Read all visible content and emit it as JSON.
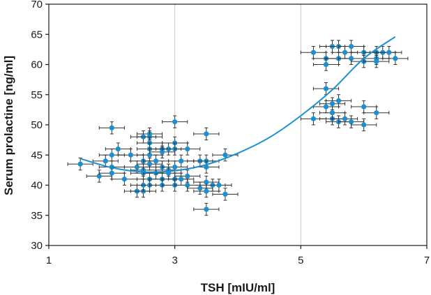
{
  "chart_data": {
    "type": "scatter",
    "title": "",
    "xlabel": "TSH [mIU/ml]",
    "ylabel": "Serum prolactine [ng/ml]",
    "xlim": [
      1,
      7
    ],
    "ylim": [
      30,
      70
    ],
    "x_ticks": [
      "1",
      "3",
      "5",
      "7"
    ],
    "y_ticks": [
      "30",
      "35",
      "40",
      "45",
      "50",
      "55",
      "60",
      "65",
      "70"
    ],
    "grid": "vertical",
    "error_bars": true,
    "colors": {
      "points": "#1b8fd0",
      "trend": "#1b8fd0",
      "error_bars": "#333333",
      "grid": "#c8c8c8"
    },
    "series": [
      {
        "values": [
          [
            1.5,
            43.5
          ],
          [
            1.8,
            41.5
          ],
          [
            1.9,
            44.0
          ],
          [
            2.0,
            49.5
          ],
          [
            2.0,
            45.0
          ],
          [
            2.0,
            43.0
          ],
          [
            2.0,
            42.0
          ],
          [
            2.1,
            46.0
          ],
          [
            2.2,
            41.0
          ],
          [
            2.3,
            45.0
          ],
          [
            2.4,
            39.0
          ],
          [
            2.4,
            43.0
          ],
          [
            2.5,
            48.0
          ],
          [
            2.5,
            44.0
          ],
          [
            2.5,
            42.5
          ],
          [
            2.5,
            39.0
          ],
          [
            2.5,
            40.0
          ],
          [
            2.5,
            42.0
          ],
          [
            2.6,
            48.5
          ],
          [
            2.6,
            48.0
          ],
          [
            2.6,
            47.0
          ],
          [
            2.6,
            46.0
          ],
          [
            2.6,
            45.0
          ],
          [
            2.6,
            43.5
          ],
          [
            2.6,
            41.0
          ],
          [
            2.6,
            40.0
          ],
          [
            2.7,
            44.0
          ],
          [
            2.7,
            42.0
          ],
          [
            2.8,
            46.0
          ],
          [
            2.8,
            45.5
          ],
          [
            2.8,
            43.0
          ],
          [
            2.8,
            41.0
          ],
          [
            2.8,
            40.0
          ],
          [
            2.9,
            46.0
          ],
          [
            2.9,
            42.5
          ],
          [
            2.9,
            42.0
          ],
          [
            3.0,
            50.5
          ],
          [
            3.0,
            47.0
          ],
          [
            3.0,
            46.0
          ],
          [
            3.0,
            43.0
          ],
          [
            3.0,
            41.0
          ],
          [
            3.0,
            40.0
          ],
          [
            3.1,
            44.0
          ],
          [
            3.1,
            41.0
          ],
          [
            3.2,
            46.0
          ],
          [
            3.2,
            41.5
          ],
          [
            3.2,
            40.0
          ],
          [
            3.4,
            44.0
          ],
          [
            3.4,
            39.5
          ],
          [
            3.5,
            48.5
          ],
          [
            3.5,
            44.0
          ],
          [
            3.5,
            43.0
          ],
          [
            3.5,
            40.5
          ],
          [
            3.5,
            39.0
          ],
          [
            3.5,
            36.0
          ],
          [
            3.6,
            40.0
          ],
          [
            3.7,
            40.0
          ],
          [
            3.8,
            45.0
          ],
          [
            3.8,
            38.5
          ],
          [
            5.2,
            62.0
          ],
          [
            5.2,
            51.0
          ],
          [
            5.4,
            61.0
          ],
          [
            5.4,
            60.0
          ],
          [
            5.4,
            56.0
          ],
          [
            5.4,
            53.0
          ],
          [
            5.5,
            63.0
          ],
          [
            5.5,
            53.5
          ],
          [
            5.5,
            51.0
          ],
          [
            5.5,
            52.0
          ],
          [
            5.6,
            63.0
          ],
          [
            5.6,
            61.0
          ],
          [
            5.6,
            54.0
          ],
          [
            5.6,
            50.5
          ],
          [
            5.7,
            62.0
          ],
          [
            5.7,
            51.0
          ],
          [
            5.8,
            63.0
          ],
          [
            5.8,
            61.0
          ],
          [
            5.8,
            50.5
          ],
          [
            6.0,
            62.0
          ],
          [
            6.0,
            60.5
          ],
          [
            6.0,
            53.0
          ],
          [
            6.0,
            50.0
          ],
          [
            6.2,
            62.0
          ],
          [
            6.2,
            61.0
          ],
          [
            6.2,
            60.5
          ],
          [
            6.2,
            52.0
          ],
          [
            6.3,
            62.0
          ],
          [
            6.4,
            62.0
          ],
          [
            6.5,
            61.0
          ]
        ]
      }
    ],
    "trend_line": {
      "x": [
        1.5,
        2.0,
        2.5,
        3.0,
        3.5,
        4.0,
        4.5,
        5.0,
        5.5,
        6.0,
        6.5
      ],
      "y": [
        44.4,
        42.9,
        42.2,
        42.4,
        43.4,
        45.3,
        47.9,
        51.5,
        55.8,
        61.0,
        64.6
      ]
    }
  }
}
